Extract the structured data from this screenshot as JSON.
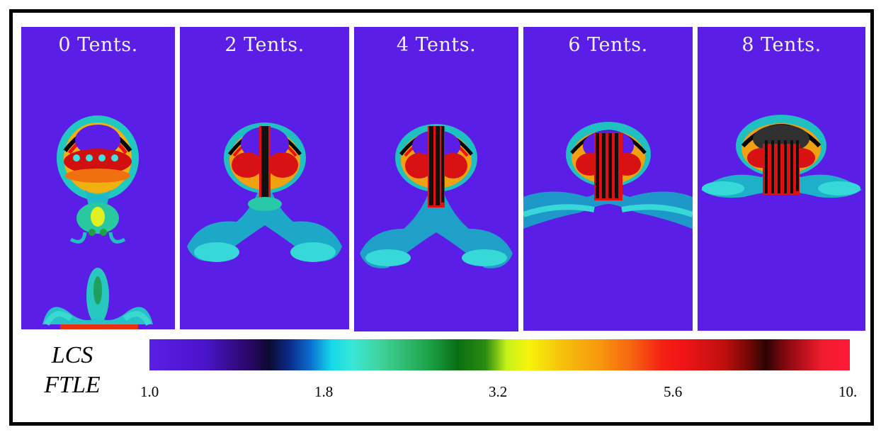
{
  "panels": [
    {
      "label": "0 Tents."
    },
    {
      "label": "2 Tents."
    },
    {
      "label": "4 Tents."
    },
    {
      "label": "6 Tents."
    },
    {
      "label": "8 Tents."
    }
  ],
  "legend": {
    "line1": "LCS",
    "line2": "FTLE",
    "ticks": [
      "1.0",
      "1.8",
      "3.2",
      "5.6",
      "10."
    ]
  },
  "colors": {
    "background_field": "#5a1ee6",
    "frame": "#000000"
  }
}
